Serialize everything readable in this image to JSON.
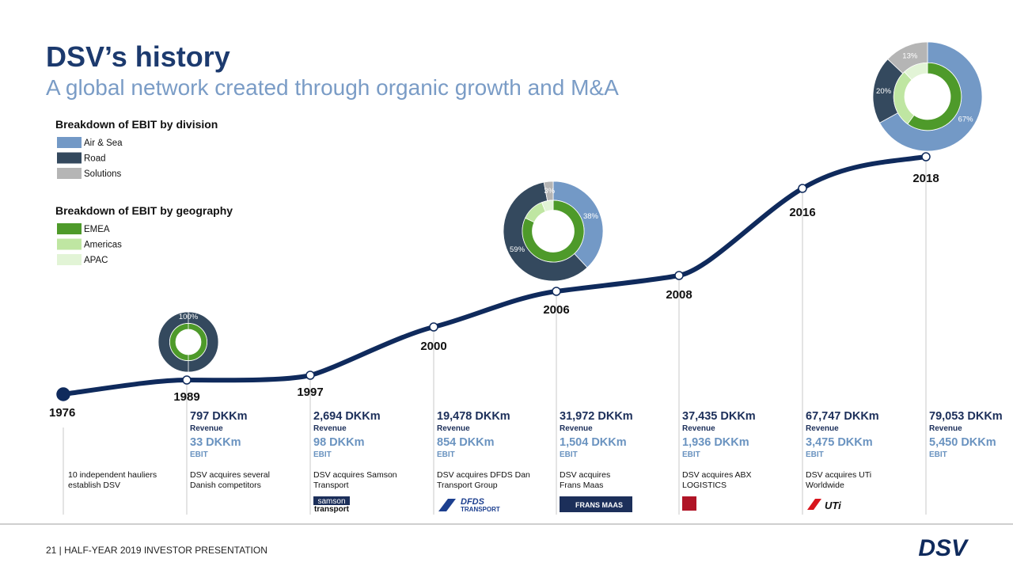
{
  "header": {
    "title": "DSV’s history",
    "subtitle": "A global network created through organic growth and M&A"
  },
  "legends": {
    "division": {
      "title": "Breakdown of EBIT by division",
      "items": [
        {
          "name": "Air & Sea",
          "color": "#7399c6"
        },
        {
          "name": "Road",
          "color": "#34495e"
        },
        {
          "name": "Solutions",
          "color": "#b5b5b5"
        }
      ]
    },
    "geography": {
      "title": "Breakdown of EBIT by geography",
      "items": [
        {
          "name": "EMEA",
          "color": "#4e9a2a"
        },
        {
          "name": "Americas",
          "color": "#bfe6a2"
        },
        {
          "name": "APAC",
          "color": "#e2f4d6"
        }
      ]
    }
  },
  "donuts": [
    {
      "year": "1989",
      "division": [
        {
          "value": 100,
          "label": "100%",
          "color": "#34495e"
        }
      ],
      "geography": [
        {
          "value": 100,
          "color": "#4e9a2a"
        }
      ]
    },
    {
      "year": "2006",
      "division": [
        {
          "value": 38,
          "label": "38%",
          "color": "#7399c6"
        },
        {
          "value": 59,
          "label": "59%",
          "color": "#34495e"
        },
        {
          "value": 3,
          "label": "3%",
          "color": "#b5b5b5"
        }
      ],
      "geography": [
        {
          "value": 82,
          "color": "#4e9a2a"
        },
        {
          "value": 12,
          "color": "#bfe6a2"
        },
        {
          "value": 6,
          "color": "#e2f4d6"
        }
      ]
    },
    {
      "year": "2018",
      "division": [
        {
          "value": 67,
          "label": "67%",
          "color": "#7399c6"
        },
        {
          "value": 20,
          "label": "20%",
          "color": "#34495e"
        },
        {
          "value": 13,
          "label": "13%",
          "color": "#b5b5b5"
        }
      ],
      "geography": [
        {
          "value": 60,
          "color": "#4e9a2a"
        },
        {
          "value": 28,
          "color": "#bfe6a2"
        },
        {
          "value": 12,
          "color": "#e2f4d6"
        }
      ]
    }
  ],
  "milestones": [
    {
      "year": "1976",
      "description": [
        "10 independent hauliers",
        "establish DSV"
      ]
    },
    {
      "year": "1989",
      "revenue": "797 DKKm",
      "revenue_label": "Revenue",
      "ebit": "33 DKKm",
      "ebit_label": "EBIT",
      "description": [
        "DSV acquires several",
        "Danish competitors"
      ]
    },
    {
      "year": "1997",
      "revenue": "2,694 DKKm",
      "revenue_label": "Revenue",
      "ebit": "98 DKKm",
      "ebit_label": "EBIT",
      "description": [
        "DSV acquires Samson",
        "Transport"
      ],
      "logo": [
        "samson",
        "transport"
      ]
    },
    {
      "year": "2000",
      "revenue": "19,478 DKKm",
      "revenue_label": "Revenue",
      "ebit": "854 DKKm",
      "ebit_label": "EBIT",
      "description": [
        "DSV acquires DFDS Dan",
        "Transport Group"
      ],
      "logo": [
        "DFDS",
        "TRANSPORT"
      ]
    },
    {
      "year": "2006",
      "revenue": "31,972 DKKm",
      "revenue_label": "Revenue",
      "ebit": "1,504 DKKm",
      "ebit_label": "EBIT",
      "description": [
        "DSV acquires",
        "Frans Maas"
      ],
      "logo": [
        "FRANS MAAS"
      ]
    },
    {
      "year": "2008",
      "revenue": "37,435 DKKm",
      "revenue_label": "Revenue",
      "ebit": "1,936 DKKm",
      "ebit_label": "EBIT",
      "description": [
        "DSV acquires ABX",
        "LOGISTICS"
      ]
    },
    {
      "year": "2016",
      "revenue": "67,747 DKKm",
      "revenue_label": "Revenue",
      "ebit": "3,475 DKKm",
      "ebit_label": "EBIT",
      "description": [
        "DSV acquires UTi",
        "Worldwide"
      ],
      "logo": [
        "UTi"
      ]
    },
    {
      "year": "2018",
      "revenue": "79,053 DKKm",
      "revenue_label": "Revenue",
      "ebit": "5,450 DKKm",
      "ebit_label": "EBIT"
    }
  ],
  "footer": {
    "text": "21 | HALF-YEAR 2019 INVESTOR PRESENTATION",
    "logo": "DSV"
  }
}
